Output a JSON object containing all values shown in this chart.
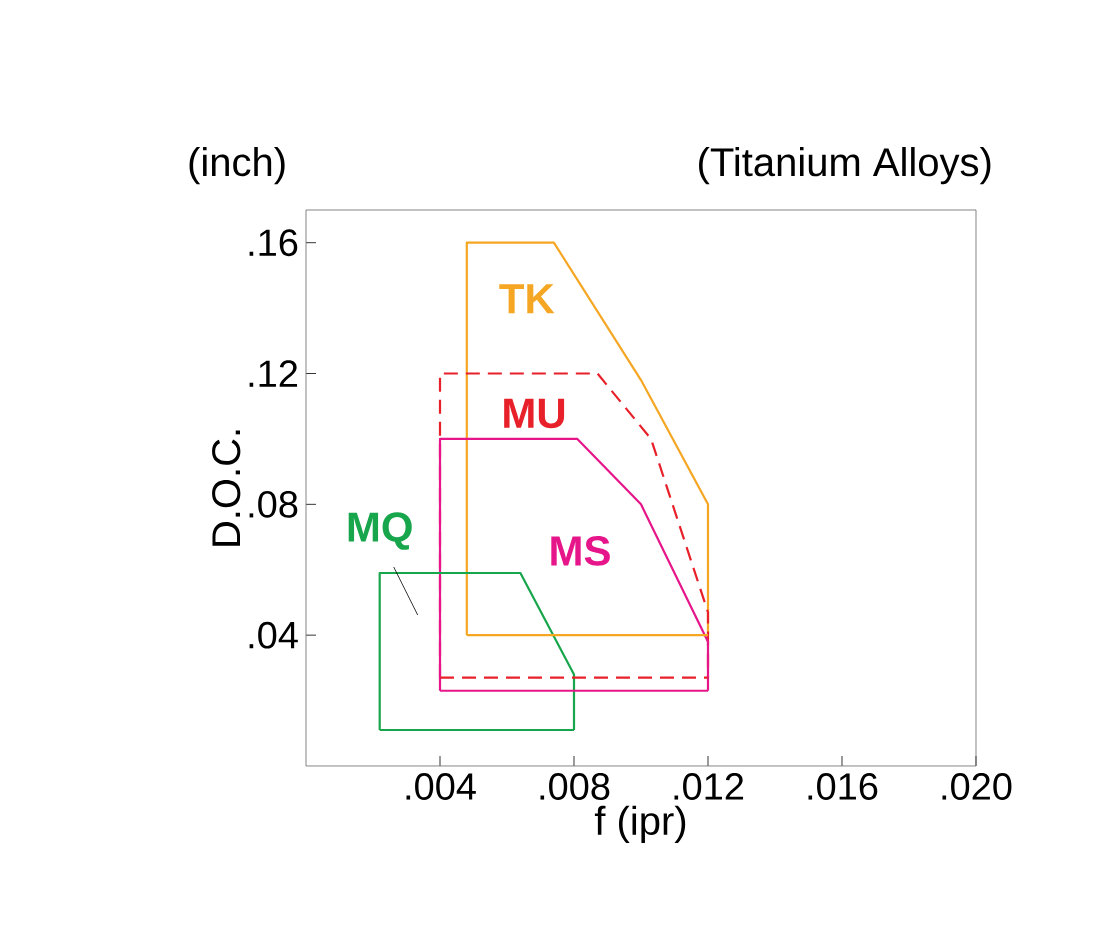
{
  "chart_data": {
    "type": "line",
    "title": "(Titanium Alloys)",
    "xlabel": "f (ipr)",
    "ylabel": "D.O.C.",
    "xlim": [
      0,
      0.02
    ],
    "ylim": [
      0,
      0.17
    ],
    "xticks": [
      {
        "value": 0.004,
        "label": ".004"
      },
      {
        "value": 0.008,
        "label": ".008"
      },
      {
        "value": 0.012,
        "label": ".012"
      },
      {
        "value": 0.016,
        "label": ".016"
      },
      {
        "value": 0.02,
        "label": ".020"
      }
    ],
    "yticks": [
      {
        "value": 0.04,
        "label": ".04"
      },
      {
        "value": 0.08,
        "label": ".08"
      },
      {
        "value": 0.12,
        "label": ".12"
      },
      {
        "value": 0.16,
        "label": ".16"
      }
    ],
    "series": [
      {
        "name": "TK",
        "color": "#f5a623",
        "line_style": "solid",
        "x": [
          0.0048,
          0.0048,
          0.0074,
          0.01,
          0.012,
          0.012
        ],
        "values": [
          0.04,
          0.16,
          0.16,
          0.118,
          0.08,
          0.04
        ]
      },
      {
        "name": "MU",
        "color": "#e8202a",
        "line_style": "dashed",
        "x": [
          0.004,
          0.004,
          0.0087,
          0.0103,
          0.012,
          0.012
        ],
        "values": [
          0.027,
          0.12,
          0.12,
          0.1,
          0.047,
          0.027
        ]
      },
      {
        "name": "MS",
        "color": "#e6168a",
        "line_style": "solid",
        "x": [
          0.004,
          0.004,
          0.0081,
          0.01,
          0.012,
          0.012
        ],
        "values": [
          0.023,
          0.1,
          0.1,
          0.08,
          0.038,
          0.023
        ]
      },
      {
        "name": "MQ",
        "color": "#18a64c",
        "line_style": "solid",
        "x": [
          0.0022,
          0.0022,
          0.0064,
          0.008,
          0.008
        ],
        "values": [
          0.011,
          0.059,
          0.059,
          0.028,
          0.011
        ]
      },
      {
        "color": "#f5a623",
        "line_style": "solid",
        "x": [
          0.0048,
          0.012
        ],
        "values": [
          0.04,
          0.04
        ]
      },
      {
        "color": "#e8202a",
        "line_style": "dashed",
        "x": [
          0.004,
          0.012
        ],
        "values": [
          0.027,
          0.027
        ]
      },
      {
        "color": "#e6168a",
        "line_style": "solid",
        "x": [
          0.004,
          0.012
        ],
        "values": [
          0.023,
          0.023
        ]
      },
      {
        "color": "#18a64c",
        "line_style": "solid",
        "x": [
          0.0022,
          0.008
        ],
        "values": [
          0.011,
          0.011
        ]
      }
    ],
    "annotations": [
      "(inch)"
    ]
  }
}
